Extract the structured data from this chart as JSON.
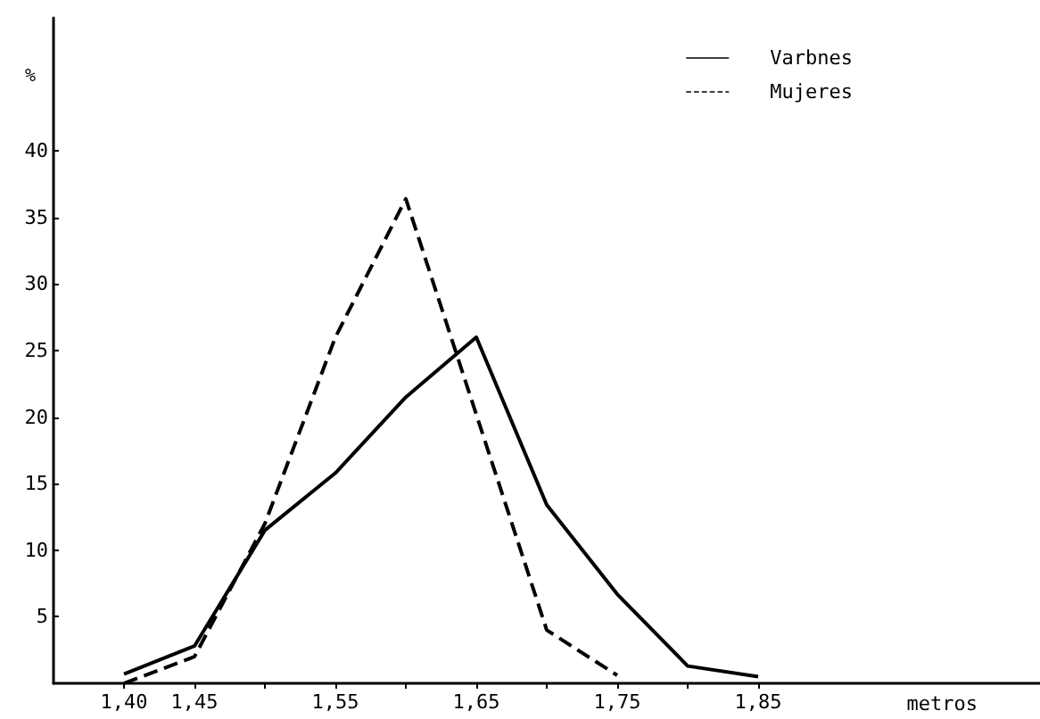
{
  "chart_data": {
    "type": "line",
    "ylabel": "%",
    "xlabel": "metros",
    "xlim": [
      1.35,
      2.05
    ],
    "xticks": [
      {
        "value": 1.4,
        "label": "1,40"
      },
      {
        "value": 1.45,
        "label": "1,45"
      },
      {
        "value": 1.5,
        "label": null
      },
      {
        "value": 1.55,
        "label": "1,55"
      },
      {
        "value": 1.6,
        "label": null
      },
      {
        "value": 1.65,
        "label": "1,65"
      },
      {
        "value": 1.7,
        "label": null
      },
      {
        "value": 1.75,
        "label": "1,75"
      },
      {
        "value": 1.8,
        "label": null
      },
      {
        "value": 1.85,
        "label": "1,85"
      }
    ],
    "ylim": [
      0,
      50
    ],
    "yticks": [
      5,
      10,
      15,
      20,
      25,
      30,
      35,
      40
    ],
    "series": [
      {
        "name": "Varbnes",
        "color": "#000000",
        "line_style": "solid",
        "x": [
          1.4,
          1.45,
          1.5,
          1.55,
          1.6,
          1.65,
          1.7,
          1.75,
          1.8,
          1.85
        ],
        "values": [
          0.7,
          2.8,
          11.5,
          15.8,
          21.5,
          26,
          13.4,
          6.7,
          1.3,
          0.5
        ]
      },
      {
        "name": "Mujeres",
        "color": "#000000",
        "line_style": "dashed",
        "x": [
          1.4,
          1.45,
          1.5,
          1.55,
          1.6,
          1.7,
          1.75
        ],
        "values": [
          0,
          2,
          12,
          26,
          36.4,
          4,
          0.6
        ]
      }
    ],
    "legend": "top right",
    "grid": false,
    "marker": "none"
  }
}
